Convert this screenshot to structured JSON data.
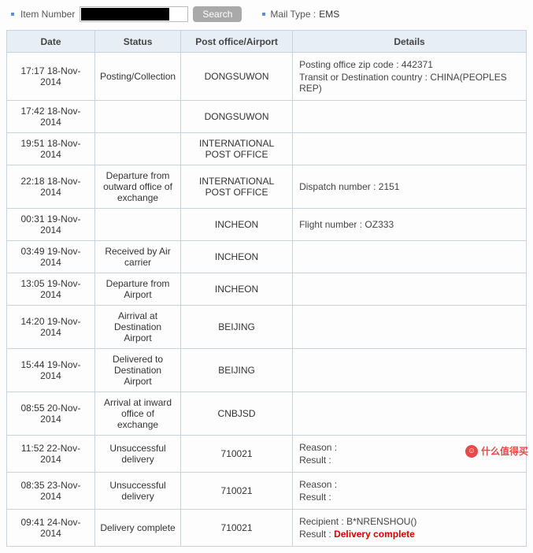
{
  "search": {
    "item_number_label": "Item Number",
    "item_number_value": "",
    "search_btn": "Search",
    "mail_type_label": "Mail Type :",
    "mail_type_value": "EMS"
  },
  "headers": {
    "date": "Date",
    "status": "Status",
    "office": "Post office/Airport",
    "details": "Details"
  },
  "rows": [
    {
      "date": "17:17 18-Nov-2014",
      "status": "Posting/Collection",
      "office": "DONGSUWON",
      "details_lines": [
        "Posting office zip code : 442371",
        "Transit or Destination country : CHINA(PEOPLES REP)"
      ]
    },
    {
      "date": "17:42 18-Nov-2014",
      "status": "",
      "office": "DONGSUWON",
      "details_lines": []
    },
    {
      "date": "19:51 18-Nov-2014",
      "status": "",
      "office": "INTERNATIONAL POST OFFICE",
      "details_lines": []
    },
    {
      "date": "22:18 18-Nov-2014",
      "status": "Departure from outward office of exchange",
      "office": "INTERNATIONAL POST OFFICE",
      "details_lines": [
        "Dispatch number : 2151"
      ]
    },
    {
      "date": "00:31 19-Nov-2014",
      "status": "",
      "office": "INCHEON",
      "details_lines": [
        "Flight number : OZ333"
      ]
    },
    {
      "date": "03:49 19-Nov-2014",
      "status": "Received by Air carrier",
      "office": "INCHEON",
      "details_lines": []
    },
    {
      "date": "13:05 19-Nov-2014",
      "status": "Departure from Airport",
      "office": "INCHEON",
      "details_lines": []
    },
    {
      "date": "14:20 19-Nov-2014",
      "status": "Airrival at Destination Airport",
      "office": "BEIJING",
      "details_lines": []
    },
    {
      "date": "15:44 19-Nov-2014",
      "status": "Delivered to Destination Airport",
      "office": "BEIJING",
      "details_lines": []
    },
    {
      "date": "08:55 20-Nov-2014",
      "status": "Arrival at inward office of exchange",
      "office": "CNBJSD",
      "details_lines": []
    },
    {
      "date": "11:52 22-Nov-2014",
      "status": "Unsuccessful delivery",
      "office": "710021",
      "details_lines": [
        "Reason :",
        "Result :"
      ]
    },
    {
      "date": "08:35 23-Nov-2014",
      "status": "Unsuccessful delivery",
      "office": "710021",
      "details_lines": [
        "Reason :",
        "Result :"
      ]
    },
    {
      "date": "09:41 24-Nov-2014",
      "status": "Delivery complete",
      "office": "710021",
      "details_lines": [
        "Recipient : B*NRENSHOU()",
        {
          "prefix": "Result : ",
          "red": "Delivery complete"
        }
      ]
    }
  ],
  "watermark": {
    "zh": "什么值得买",
    "domain": ""
  }
}
